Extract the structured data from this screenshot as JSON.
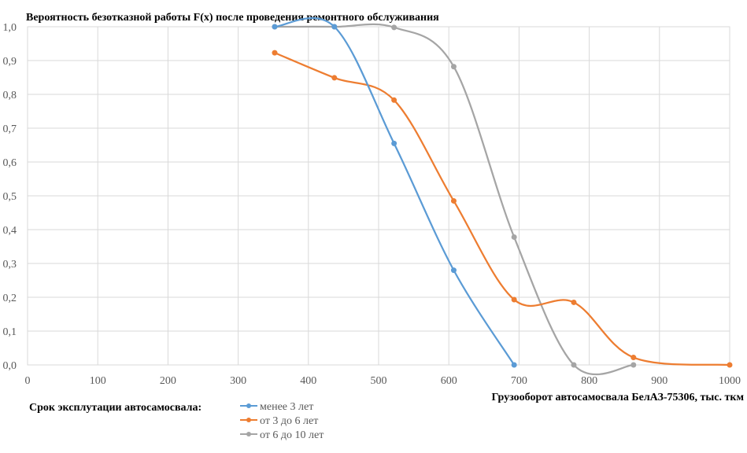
{
  "chart_data": {
    "type": "line",
    "title": "Вероятность безотказной работы F(x) после проведения ремонтного обслуживания",
    "xlabel": "Грузооборот  автосамосвала  БелАЗ-75306, тыс. ткм",
    "ylabel": "",
    "xlim": [
      0,
      1000
    ],
    "ylim": [
      0,
      1
    ],
    "x_ticks": [
      0,
      100,
      200,
      300,
      400,
      500,
      600,
      700,
      800,
      900,
      1000
    ],
    "y_ticks": [
      "0,0",
      "0,1",
      "0,2",
      "0,3",
      "0,4",
      "0,5",
      "0,6",
      "0,7",
      "0,8",
      "0,9",
      "1,0"
    ],
    "grid": true,
    "legend_title": "Срок эксплутации автосамосвала:",
    "legend_position": "bottom-left",
    "smooth": true,
    "series": [
      {
        "name": "менее 3 лет",
        "color": "#5b9bd5",
        "points": [
          [
            352,
            1.0
          ],
          [
            437,
            1.0
          ],
          [
            522,
            0.655
          ],
          [
            607,
            0.28
          ],
          [
            693,
            0.0
          ]
        ]
      },
      {
        "name": "от 3 до 6 лет",
        "color": "#ed7d31",
        "points": [
          [
            352,
            0.923
          ],
          [
            437,
            0.849
          ],
          [
            522,
            0.783
          ],
          [
            607,
            0.485
          ],
          [
            693,
            0.193
          ],
          [
            778,
            0.185
          ],
          [
            863,
            0.022
          ],
          [
            1000,
            0.0
          ]
        ]
      },
      {
        "name": "от 6 до 10 лет",
        "color": "#a5a5a5",
        "points": [
          [
            352,
            1.0
          ],
          [
            437,
            1.0
          ],
          [
            522,
            0.998
          ],
          [
            607,
            0.882
          ],
          [
            693,
            0.378
          ],
          [
            778,
            0.0
          ],
          [
            863,
            0.0
          ]
        ]
      }
    ]
  }
}
